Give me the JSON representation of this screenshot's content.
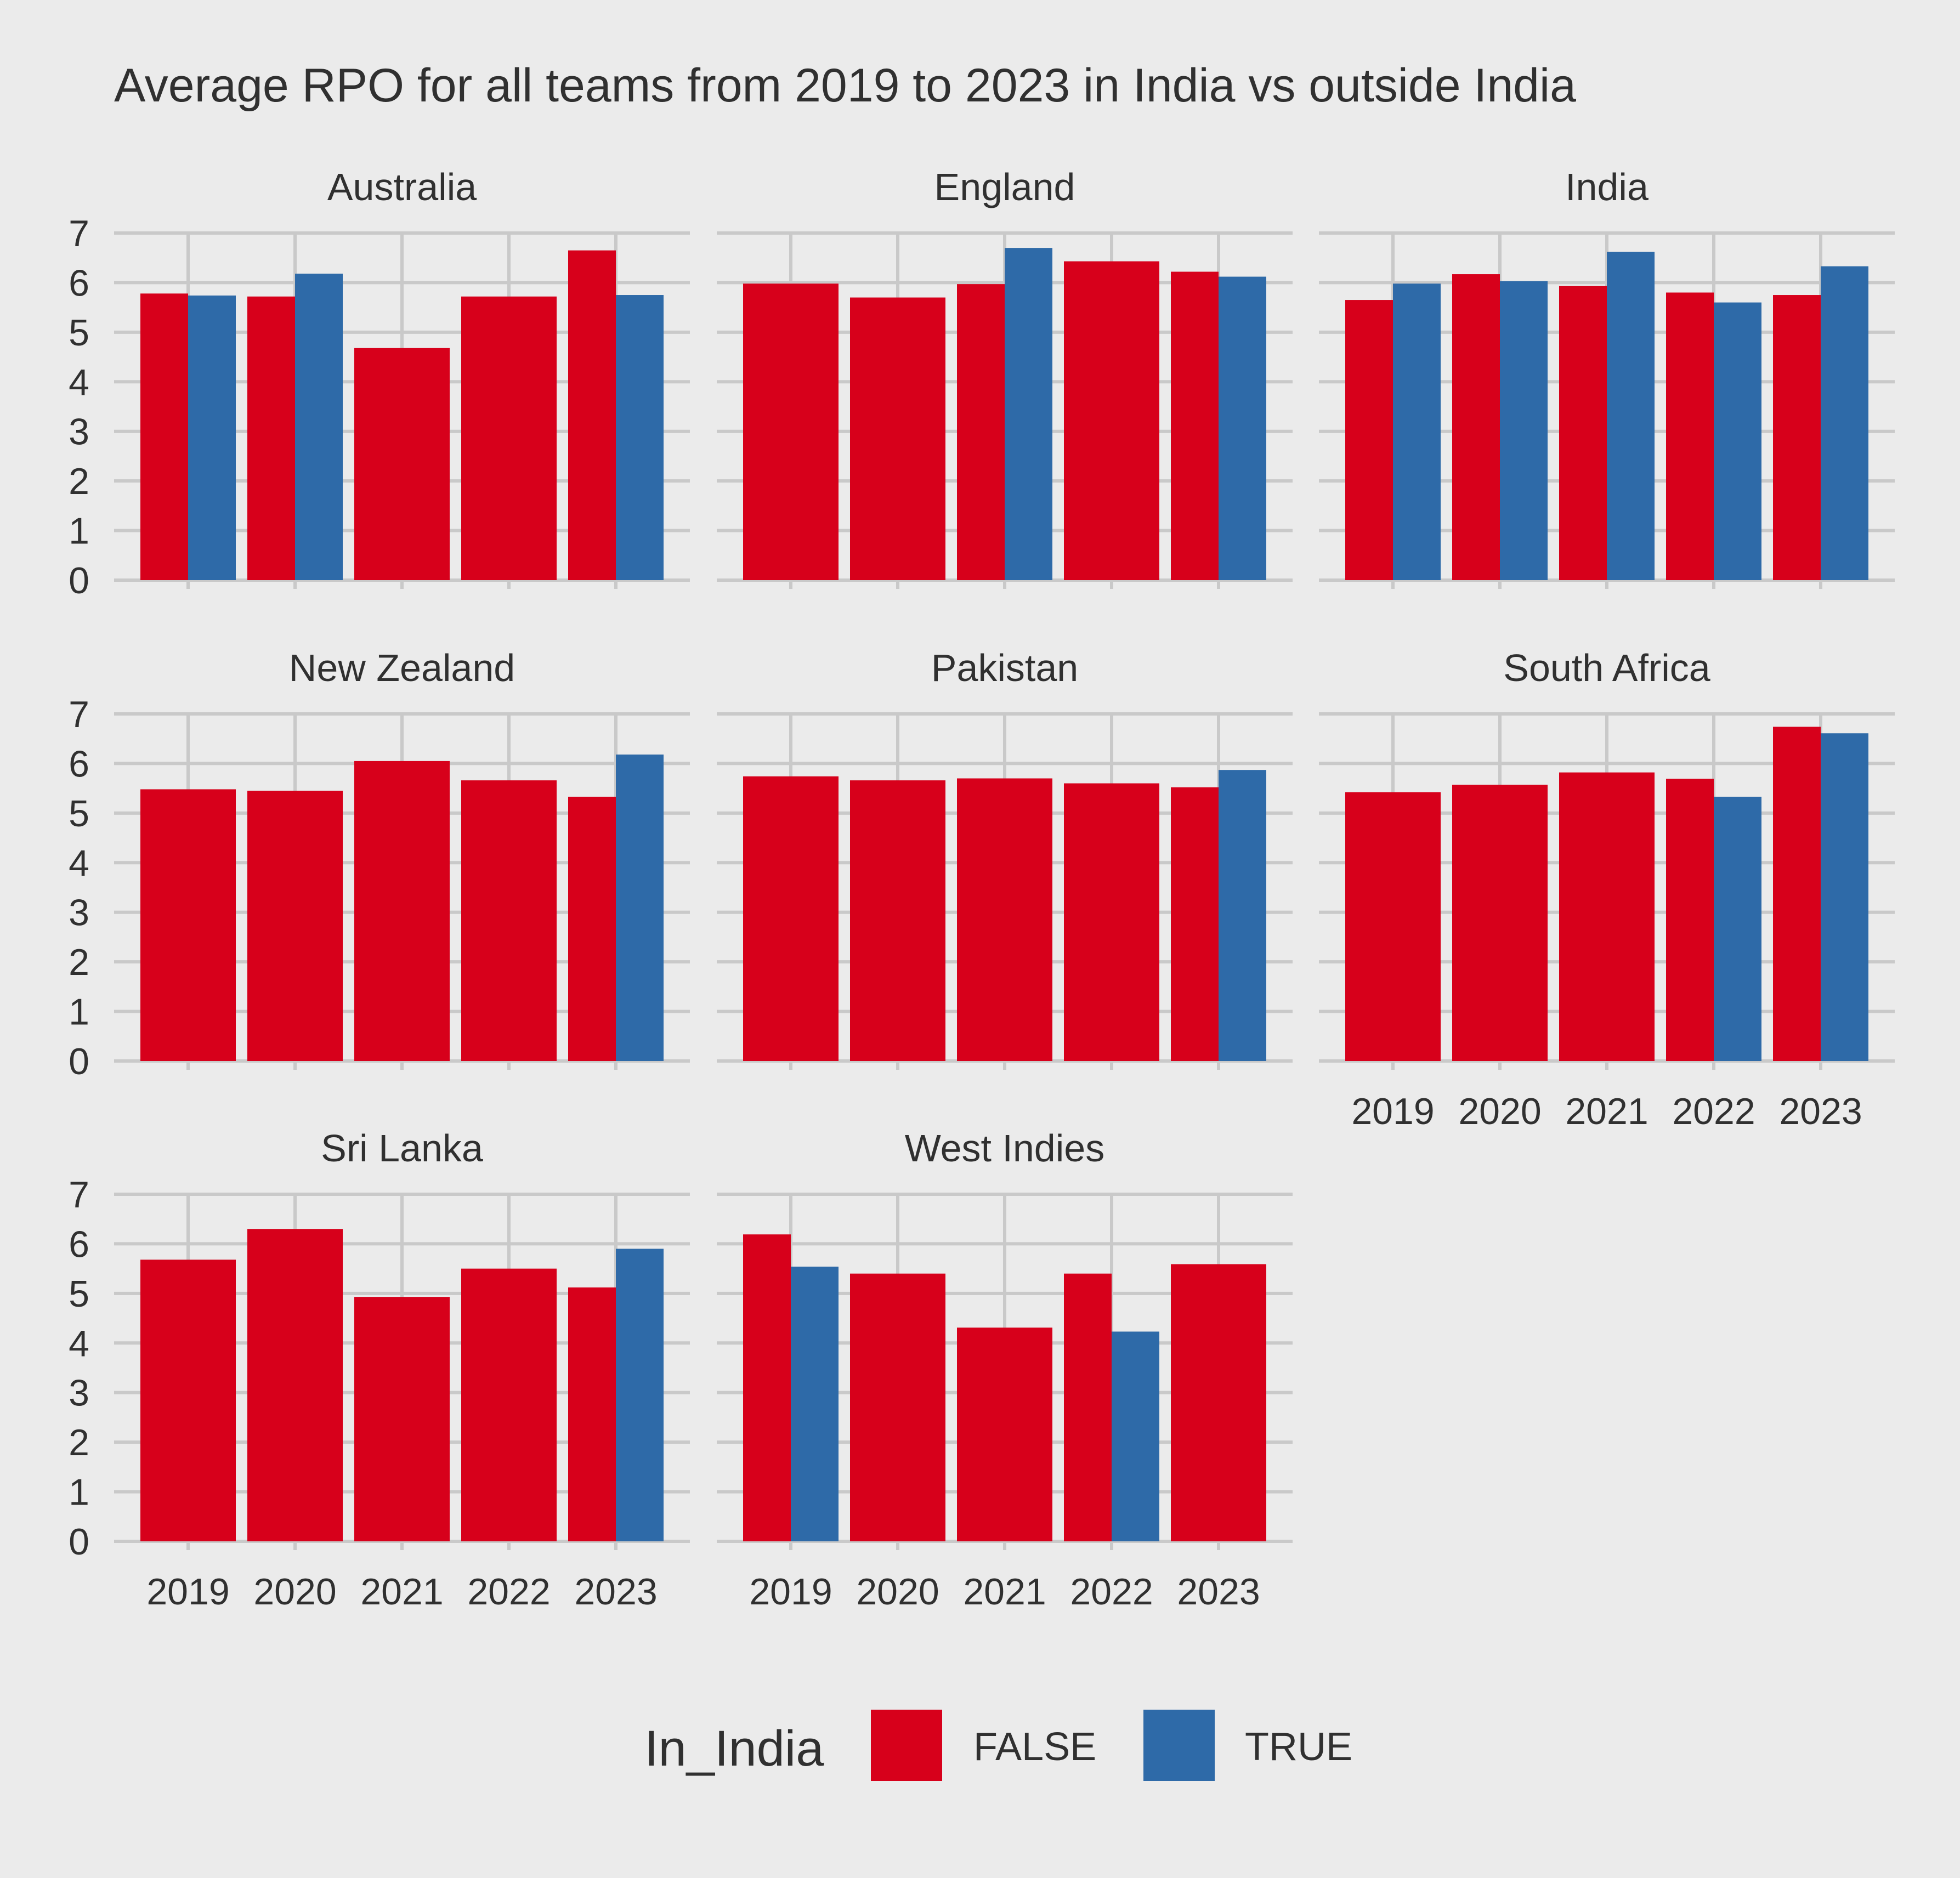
{
  "chart_data": {
    "type": "bar",
    "title": "Average RPO for all teams from 2019 to 2023 in India vs outside India",
    "categories": [
      "2019",
      "2020",
      "2021",
      "2022",
      "2023"
    ],
    "ylim": [
      0,
      7
    ],
    "yticks": [
      "0",
      "1",
      "2",
      "3",
      "4",
      "5",
      "6",
      "7"
    ],
    "grid": true,
    "legend": {
      "title": "In_India",
      "position": "bottom",
      "entries": [
        {
          "label": "FALSE",
          "color": "#d7001b"
        },
        {
          "label": "TRUE",
          "color": "#2e6aa8"
        }
      ]
    },
    "panels": [
      {
        "name": "Australia",
        "series": [
          {
            "name": "FALSE",
            "values": [
              5.78,
              5.72,
              4.68,
              5.72,
              6.65
            ]
          },
          {
            "name": "TRUE",
            "values": [
              5.74,
              6.18,
              null,
              null,
              5.75
            ]
          }
        ]
      },
      {
        "name": "England",
        "series": [
          {
            "name": "FALSE",
            "values": [
              5.98,
              5.7,
              5.97,
              6.43,
              6.22
            ]
          },
          {
            "name": "TRUE",
            "values": [
              null,
              null,
              6.7,
              null,
              6.12
            ]
          }
        ]
      },
      {
        "name": "India",
        "series": [
          {
            "name": "FALSE",
            "values": [
              5.65,
              6.17,
              5.93,
              5.8,
              5.75
            ]
          },
          {
            "name": "TRUE",
            "values": [
              5.98,
              6.03,
              6.62,
              5.6,
              6.33
            ]
          }
        ]
      },
      {
        "name": "New Zealand",
        "series": [
          {
            "name": "FALSE",
            "values": [
              5.48,
              5.45,
              6.05,
              5.66,
              5.33
            ]
          },
          {
            "name": "TRUE",
            "values": [
              null,
              null,
              null,
              null,
              6.18
            ]
          }
        ]
      },
      {
        "name": "Pakistan",
        "series": [
          {
            "name": "FALSE",
            "values": [
              5.74,
              5.66,
              5.7,
              5.6,
              5.52
            ]
          },
          {
            "name": "TRUE",
            "values": [
              null,
              null,
              null,
              null,
              5.87
            ]
          }
        ]
      },
      {
        "name": "South Africa",
        "series": [
          {
            "name": "FALSE",
            "values": [
              5.42,
              5.57,
              5.82,
              5.69,
              6.74
            ]
          },
          {
            "name": "TRUE",
            "values": [
              null,
              null,
              null,
              5.33,
              6.61
            ]
          }
        ]
      },
      {
        "name": "Sri Lanka",
        "series": [
          {
            "name": "FALSE",
            "values": [
              5.68,
              6.3,
              4.93,
              5.5,
              5.12
            ]
          },
          {
            "name": "TRUE",
            "values": [
              null,
              null,
              null,
              null,
              5.9
            ]
          }
        ]
      },
      {
        "name": "West Indies",
        "series": [
          {
            "name": "FALSE",
            "values": [
              6.19,
              5.4,
              4.31,
              5.4,
              5.59
            ]
          },
          {
            "name": "TRUE",
            "values": [
              5.54,
              null,
              null,
              4.23,
              null
            ]
          }
        ]
      }
    ]
  },
  "colors": {
    "background": "#ebebeb",
    "grid": "#c9c9c9",
    "false_bar": "#d7001b",
    "true_bar": "#2e6aa8",
    "text": "#303030"
  }
}
